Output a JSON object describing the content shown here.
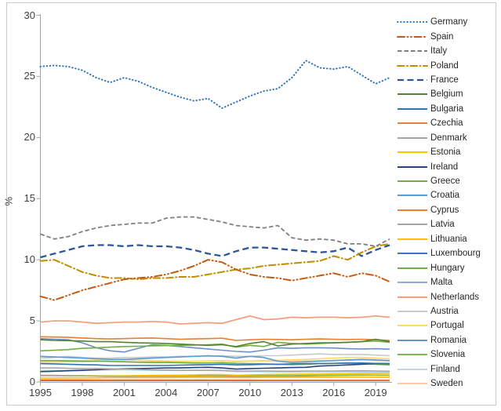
{
  "chart_data": {
    "type": "line",
    "title": "",
    "xlabel": "",
    "ylabel": "%",
    "ylim": [
      0,
      30
    ],
    "y_ticks": [
      30,
      25,
      20,
      15,
      10,
      5,
      0
    ],
    "x_tick_labels": [
      "1995",
      "1998",
      "2001",
      "2004",
      "2007",
      "2010",
      "2013",
      "2016",
      "2019"
    ],
    "grid": false,
    "legend_position": "right",
    "axis_color": "#A6A6A6",
    "x": [
      1995,
      1996,
      1997,
      1998,
      1999,
      2000,
      2001,
      2002,
      2003,
      2004,
      2005,
      2006,
      2007,
      2008,
      2009,
      2010,
      2011,
      2012,
      2013,
      2014,
      2015,
      2016,
      2017,
      2018,
      2019,
      2020
    ],
    "series": [
      {
        "name": "Germany",
        "color": "#2E75B6",
        "dash": "0.5 3.6",
        "cap": "round",
        "width": 2,
        "values": [
          25.8,
          25.9,
          25.8,
          25.5,
          24.9,
          24.5,
          24.9,
          24.6,
          24.1,
          23.7,
          23.3,
          23.0,
          23.2,
          22.4,
          22.9,
          23.4,
          23.8,
          24.0,
          24.9,
          26.3,
          25.7,
          25.6,
          25.8,
          25.1,
          24.4,
          24.9
        ]
      },
      {
        "name": "Spain",
        "color": "#C55A11",
        "dash": "9 3.5 1 3.5 1 3.5",
        "cap": "round",
        "width": 2,
        "values": [
          7.0,
          6.7,
          7.1,
          7.5,
          7.8,
          8.1,
          8.4,
          8.5,
          8.6,
          8.8,
          9.1,
          9.5,
          10.0,
          9.8,
          9.2,
          8.8,
          8.6,
          8.5,
          8.3,
          8.5,
          8.7,
          8.9,
          8.6,
          8.9,
          8.7,
          8.2
        ]
      },
      {
        "name": "Italy",
        "color": "#7F7F7F",
        "dash": "5.5 3",
        "cap": "butt",
        "width": 1.8,
        "values": [
          12.1,
          11.7,
          11.9,
          12.3,
          12.6,
          12.8,
          12.9,
          13.0,
          13.0,
          13.4,
          13.5,
          13.5,
          13.3,
          13.1,
          12.8,
          12.7,
          12.6,
          12.8,
          11.8,
          11.6,
          11.7,
          11.6,
          11.3,
          11.3,
          11.1,
          11.7
        ]
      },
      {
        "name": "Poland",
        "color": "#BF8F00",
        "dash": "8.5 3.5 1 3.5",
        "cap": "round",
        "width": 2,
        "values": [
          9.9,
          10.0,
          9.5,
          9.0,
          8.7,
          8.5,
          8.5,
          8.4,
          8.5,
          8.5,
          8.6,
          8.6,
          8.8,
          9.0,
          9.2,
          9.3,
          9.5,
          9.6,
          9.7,
          9.8,
          9.9,
          10.3,
          10.0,
          10.6,
          11.1,
          11.3
        ]
      },
      {
        "name": "France",
        "color": "#2F5597",
        "dash": "8 4.5",
        "cap": "butt",
        "width": 2.3,
        "values": [
          10.2,
          10.5,
          10.8,
          11.1,
          11.2,
          11.2,
          11.1,
          11.2,
          11.1,
          11.1,
          11.0,
          10.8,
          10.5,
          10.3,
          10.7,
          11.0,
          11.0,
          10.9,
          10.8,
          10.7,
          10.6,
          10.7,
          11.0,
          10.3,
          10.8,
          11.2
        ]
      },
      {
        "name": "Belgium",
        "color": "#548235",
        "dash": "",
        "cap": "butt",
        "width": 1.6,
        "values": [
          3.45,
          3.4,
          3.38,
          3.35,
          3.3,
          3.3,
          3.25,
          3.2,
          3.18,
          3.15,
          3.1,
          3.05,
          3.0,
          3.05,
          2.9,
          3.15,
          3.3,
          2.95,
          3.1,
          3.15,
          3.2,
          3.2,
          3.25,
          3.3,
          3.5,
          3.3
        ]
      },
      {
        "name": "Bulgaria",
        "color": "#2E75B6",
        "dash": "",
        "cap": "butt",
        "width": 1.6,
        "values": [
          1.5,
          1.48,
          1.45,
          1.42,
          1.4,
          1.35,
          1.35,
          1.35,
          1.35,
          1.35,
          1.38,
          1.4,
          1.42,
          1.45,
          1.4,
          1.42,
          1.45,
          1.45,
          1.48,
          1.5,
          1.5,
          1.52,
          1.55,
          1.55,
          1.52,
          1.5
        ]
      },
      {
        "name": "Czechia",
        "color": "#ED7D31",
        "dash": "",
        "cap": "butt",
        "width": 1.6,
        "values": [
          3.7,
          3.68,
          3.65,
          3.6,
          3.55,
          3.52,
          3.55,
          3.58,
          3.6,
          3.55,
          3.5,
          3.52,
          3.55,
          3.58,
          3.4,
          3.45,
          3.5,
          3.48,
          3.45,
          3.5,
          3.52,
          3.5,
          3.48,
          3.5,
          3.45,
          3.4
        ]
      },
      {
        "name": "Denmark",
        "color": "#A5A5A5",
        "dash": "",
        "cap": "butt",
        "width": 1.6,
        "values": [
          1.15,
          1.15,
          1.12,
          1.1,
          1.1,
          1.08,
          1.05,
          1.02,
          1.0,
          0.98,
          0.95,
          0.95,
          0.95,
          0.95,
          0.9,
          0.9,
          0.9,
          0.88,
          0.88,
          0.9,
          0.9,
          0.9,
          0.92,
          0.92,
          0.9,
          0.88
        ]
      },
      {
        "name": "Estonia",
        "color": "#FFC000",
        "dash": "",
        "cap": "butt",
        "width": 1.6,
        "values": [
          0.32,
          0.33,
          0.34,
          0.34,
          0.34,
          0.35,
          0.35,
          0.35,
          0.36,
          0.36,
          0.37,
          0.38,
          0.38,
          0.37,
          0.35,
          0.36,
          0.38,
          0.38,
          0.38,
          0.39,
          0.39,
          0.4,
          0.4,
          0.4,
          0.4,
          0.4
        ]
      },
      {
        "name": "Ireland",
        "color": "#264478",
        "dash": "",
        "cap": "butt",
        "width": 1.6,
        "values": [
          0.85,
          0.88,
          0.92,
          0.95,
          1.0,
          1.05,
          1.08,
          1.1,
          1.12,
          1.15,
          1.15,
          1.18,
          1.2,
          1.15,
          1.05,
          1.1,
          1.12,
          1.15,
          1.18,
          1.2,
          1.3,
          1.35,
          1.4,
          1.45,
          1.5,
          1.5
        ]
      },
      {
        "name": "Greece",
        "color": "#70AD47",
        "dash": "",
        "cap": "butt",
        "width": 1.6,
        "values": [
          1.75,
          1.75,
          1.72,
          1.7,
          1.7,
          1.68,
          1.65,
          1.62,
          1.6,
          1.6,
          1.58,
          1.55,
          1.55,
          1.58,
          1.52,
          1.5,
          1.48,
          1.45,
          1.42,
          1.45,
          1.5,
          1.52,
          1.55,
          1.52,
          1.45,
          1.4
        ]
      },
      {
        "name": "Croatia",
        "color": "#5B9BD5",
        "dash": "",
        "cap": "butt",
        "width": 1.6,
        "values": [
          2.1,
          2.05,
          2.0,
          1.95,
          1.9,
          1.85,
          1.85,
          1.9,
          1.95,
          2.0,
          2.05,
          2.1,
          2.15,
          2.1,
          1.95,
          2.1,
          2.0,
          1.7,
          1.6,
          1.65,
          1.7,
          1.75,
          1.8,
          1.85,
          1.8,
          1.75
        ]
      },
      {
        "name": "Cyprus",
        "color": "#ED7D31",
        "dash": "",
        "cap": "butt",
        "width": 1.6,
        "values": [
          0.18,
          0.18,
          0.18,
          0.18,
          0.17,
          0.17,
          0.17,
          0.17,
          0.17,
          0.17,
          0.17,
          0.17,
          0.17,
          0.17,
          0.16,
          0.16,
          0.15,
          0.15,
          0.15,
          0.15,
          0.15,
          0.15,
          0.15,
          0.15,
          0.15,
          0.15
        ]
      },
      {
        "name": "Latvia",
        "color": "#A5A5A5",
        "dash": "",
        "cap": "butt",
        "width": 1.6,
        "values": [
          0.55,
          0.54,
          0.52,
          0.5,
          0.48,
          0.45,
          0.44,
          0.44,
          0.44,
          0.45,
          0.45,
          0.45,
          0.46,
          0.45,
          0.42,
          0.42,
          0.43,
          0.43,
          0.43,
          0.43,
          0.42,
          0.42,
          0.42,
          0.42,
          0.4,
          0.4
        ]
      },
      {
        "name": "Lithuania",
        "color": "#FFC000",
        "dash": "",
        "cap": "butt",
        "width": 1.6,
        "values": [
          0.5,
          0.5,
          0.52,
          0.52,
          0.5,
          0.48,
          0.5,
          0.52,
          0.54,
          0.55,
          0.56,
          0.58,
          0.6,
          0.6,
          0.55,
          0.58,
          0.6,
          0.62,
          0.63,
          0.65,
          0.65,
          0.67,
          0.68,
          0.7,
          0.7,
          0.72
        ]
      },
      {
        "name": "Luxembourg",
        "color": "#4472C4",
        "dash": "",
        "cap": "butt",
        "width": 1.6,
        "values": [
          0.12,
          0.12,
          0.12,
          0.12,
          0.12,
          0.12,
          0.12,
          0.12,
          0.12,
          0.12,
          0.12,
          0.12,
          0.12,
          0.12,
          0.12,
          0.12,
          0.12,
          0.12,
          0.12,
          0.12,
          0.12,
          0.12,
          0.12,
          0.12,
          0.12,
          0.12
        ]
      },
      {
        "name": "Hungary",
        "color": "#70AD47",
        "dash": "",
        "cap": "butt",
        "width": 1.6,
        "values": [
          2.55,
          2.6,
          2.65,
          2.75,
          2.8,
          2.85,
          2.9,
          2.92,
          2.95,
          2.98,
          3.0,
          3.02,
          3.05,
          3.1,
          2.85,
          3.0,
          2.9,
          3.25,
          3.15,
          3.1,
          3.15,
          3.2,
          3.25,
          3.3,
          3.35,
          3.25
        ]
      },
      {
        "name": "Malta",
        "color": "#8EAADB",
        "dash": "",
        "cap": "butt",
        "width": 1.6,
        "values": [
          0.1,
          0.1,
          0.1,
          0.1,
          0.1,
          0.1,
          0.1,
          0.1,
          0.1,
          0.1,
          0.1,
          0.1,
          0.1,
          0.1,
          0.09,
          0.09,
          0.09,
          0.09,
          0.09,
          0.09,
          0.09,
          0.09,
          0.09,
          0.09,
          0.09,
          0.09
        ]
      },
      {
        "name": "Netherlands",
        "color": "#F4A07F",
        "dash": "",
        "cap": "butt",
        "width": 1.8,
        "values": [
          4.9,
          5.0,
          5.0,
          4.9,
          4.8,
          4.85,
          4.9,
          4.9,
          4.95,
          4.9,
          4.75,
          4.8,
          4.85,
          4.8,
          5.1,
          5.4,
          5.1,
          5.15,
          5.3,
          5.25,
          5.3,
          5.3,
          5.25,
          5.3,
          5.4,
          5.3
        ]
      },
      {
        "name": "Austria",
        "color": "#C9C9C9",
        "dash": "",
        "cap": "butt",
        "width": 1.6,
        "values": [
          1.95,
          2.0,
          2.1,
          2.0,
          1.95,
          1.95,
          2.0,
          2.0,
          2.05,
          2.05,
          2.1,
          2.1,
          2.1,
          2.15,
          2.1,
          2.1,
          2.15,
          2.15,
          2.2,
          2.25,
          2.3,
          2.25,
          2.25,
          2.25,
          2.2,
          2.15
        ]
      },
      {
        "name": "Portugal",
        "color": "#FFD966",
        "dash": "",
        "cap": "butt",
        "width": 1.6,
        "values": [
          1.7,
          1.72,
          1.75,
          1.75,
          1.78,
          1.8,
          1.8,
          1.78,
          1.75,
          1.72,
          1.7,
          1.7,
          1.72,
          1.75,
          1.7,
          1.72,
          1.75,
          1.78,
          1.8,
          1.85,
          1.9,
          1.95,
          2.0,
          2.0,
          1.95,
          1.9
        ]
      },
      {
        "name": "Romania",
        "color": "#6D8FC9",
        "dash": "",
        "cap": "butt",
        "width": 1.6,
        "values": [
          3.55,
          3.5,
          3.45,
          3.2,
          2.8,
          2.55,
          2.45,
          2.75,
          3.05,
          3.0,
          2.9,
          2.8,
          2.7,
          2.6,
          2.5,
          2.45,
          2.6,
          2.8,
          2.75,
          2.8,
          2.8,
          2.78,
          2.72,
          2.7,
          2.72,
          2.68
        ]
      },
      {
        "name": "Slovenia",
        "color": "#82B854",
        "dash": "",
        "cap": "butt",
        "width": 1.6,
        "values": [
          0.5,
          0.5,
          0.5,
          0.5,
          0.5,
          0.5,
          0.5,
          0.5,
          0.5,
          0.5,
          0.5,
          0.5,
          0.52,
          0.52,
          0.5,
          0.5,
          0.52,
          0.52,
          0.52,
          0.53,
          0.54,
          0.55,
          0.56,
          0.57,
          0.56,
          0.56
        ]
      },
      {
        "name": "Finland",
        "color": "#BDD7EE",
        "dash": "",
        "cap": "butt",
        "width": 1.6,
        "values": [
          0.95,
          0.95,
          0.95,
          0.98,
          0.98,
          1.0,
          1.0,
          0.98,
          0.95,
          0.95,
          0.95,
          0.95,
          0.95,
          0.92,
          0.85,
          0.85,
          0.85,
          0.82,
          0.8,
          0.8,
          0.8,
          0.8,
          0.82,
          0.82,
          0.8,
          0.8
        ]
      },
      {
        "name": "Sweden",
        "color": "#F8CBAD",
        "dash": "",
        "cap": "butt",
        "width": 1.6,
        "values": [
          1.6,
          1.62,
          1.65,
          1.65,
          1.68,
          1.7,
          1.68,
          1.65,
          1.65,
          1.65,
          1.65,
          1.68,
          1.7,
          1.72,
          1.65,
          1.7,
          1.72,
          1.7,
          1.7,
          1.72,
          1.75,
          1.75,
          1.78,
          1.8,
          1.75,
          1.72
        ]
      }
    ]
  }
}
